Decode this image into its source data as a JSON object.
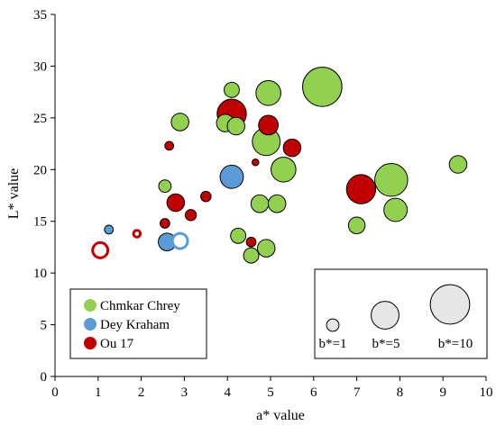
{
  "chart_data": {
    "type": "scatter",
    "subtype": "bubble",
    "xlabel": "a* value",
    "ylabel": "L* value",
    "xlim": [
      0,
      10
    ],
    "ylim": [
      0,
      35
    ],
    "x_ticks": [
      0,
      1,
      2,
      3,
      4,
      5,
      6,
      7,
      8,
      9,
      10
    ],
    "y_ticks": [
      0,
      5,
      10,
      15,
      20,
      25,
      30,
      35
    ],
    "grid": false,
    "legend_position": "bottom-left",
    "size_legend_position": "bottom-right",
    "size_variable": "b*",
    "size_legend": [
      {
        "label": "b*=1",
        "size": 1
      },
      {
        "label": "b*=5",
        "size": 5
      },
      {
        "label": "b*=10",
        "size": 10
      }
    ],
    "series": [
      {
        "name": "Chmkar Chrey",
        "color": "#92d050",
        "points": [
          {
            "x": 6.2,
            "y": 28.0,
            "size": 10
          },
          {
            "x": 4.95,
            "y": 27.4,
            "size": 4
          },
          {
            "x": 4.1,
            "y": 27.7,
            "size": 1.5
          },
          {
            "x": 2.9,
            "y": 24.6,
            "size": 2
          },
          {
            "x": 3.95,
            "y": 24.5,
            "size": 2
          },
          {
            "x": 4.2,
            "y": 24.2,
            "size": 2
          },
          {
            "x": 4.9,
            "y": 22.7,
            "size": 5
          },
          {
            "x": 5.3,
            "y": 20.0,
            "size": 4
          },
          {
            "x": 2.55,
            "y": 18.4,
            "size": 1
          },
          {
            "x": 4.75,
            "y": 16.7,
            "size": 2
          },
          {
            "x": 5.15,
            "y": 16.7,
            "size": 2
          },
          {
            "x": 4.25,
            "y": 13.6,
            "size": 1.5
          },
          {
            "x": 4.9,
            "y": 12.4,
            "size": 2
          },
          {
            "x": 4.55,
            "y": 11.7,
            "size": 1.5
          },
          {
            "x": 7.8,
            "y": 19.0,
            "size": 7
          },
          {
            "x": 7.9,
            "y": 16.1,
            "size": 3.5
          },
          {
            "x": 7.0,
            "y": 14.6,
            "size": 1.8
          },
          {
            "x": 9.35,
            "y": 20.5,
            "size": 2
          }
        ]
      },
      {
        "name": "Dey Kraham",
        "color": "#5b9bd5",
        "points": [
          {
            "x": 4.1,
            "y": 19.3,
            "size": 3.5
          },
          {
            "x": 2.6,
            "y": 13.0,
            "size": 2
          },
          {
            "x": 2.9,
            "y": 13.1,
            "size": 1.5,
            "hollow": true
          },
          {
            "x": 1.25,
            "y": 14.2,
            "size": 0.5
          }
        ]
      },
      {
        "name": "Ou 17",
        "color": "#c00000",
        "points": [
          {
            "x": 4.1,
            "y": 25.4,
            "size": 5.5
          },
          {
            "x": 4.95,
            "y": 24.3,
            "size": 2.5
          },
          {
            "x": 5.5,
            "y": 22.1,
            "size": 2
          },
          {
            "x": 2.65,
            "y": 22.3,
            "size": 0.5
          },
          {
            "x": 4.65,
            "y": 20.7,
            "size": 0.3
          },
          {
            "x": 2.8,
            "y": 16.8,
            "size": 2
          },
          {
            "x": 3.5,
            "y": 17.4,
            "size": 0.7
          },
          {
            "x": 3.15,
            "y": 15.6,
            "size": 0.8
          },
          {
            "x": 2.55,
            "y": 14.8,
            "size": 0.6
          },
          {
            "x": 4.55,
            "y": 13.0,
            "size": 0.6
          },
          {
            "x": 7.1,
            "y": 18.1,
            "size": 5.5
          },
          {
            "x": 1.9,
            "y": 13.8,
            "size": 0.3,
            "hollow": true
          },
          {
            "x": 1.05,
            "y": 12.2,
            "size": 1.5,
            "hollow": true
          }
        ]
      }
    ]
  }
}
